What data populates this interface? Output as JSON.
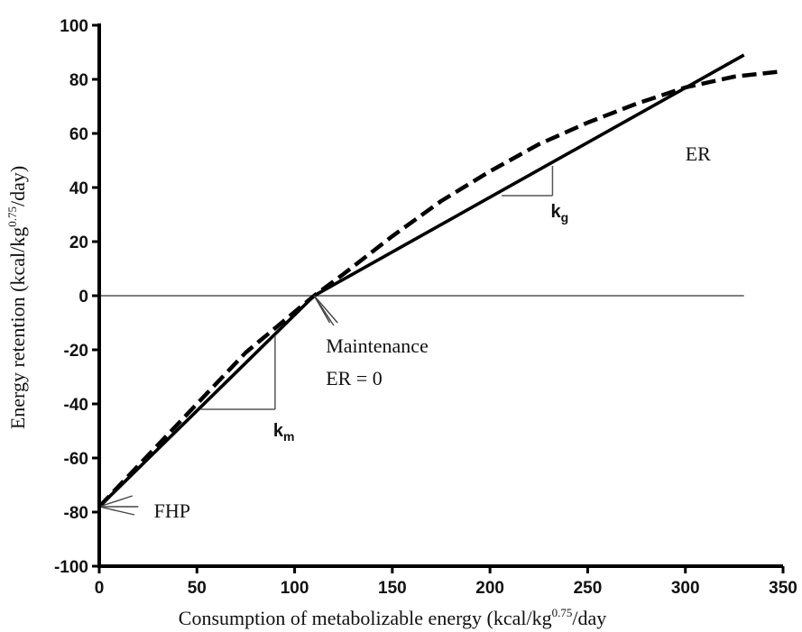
{
  "chart_data": {
    "type": "line",
    "xlabel_main": "Consumption of metabolizable energy (kcal/kg",
    "xlabel_sup": "0.75",
    "xlabel_end": "/day",
    "ylabel_main": "Energy retention (kcal/kg",
    "ylabel_sup": "0.75",
    "ylabel_end": "/day)",
    "xlim": [
      0,
      350
    ],
    "ylim": [
      -100,
      100
    ],
    "x_ticks": [
      0,
      50,
      100,
      150,
      200,
      250,
      300,
      350
    ],
    "y_ticks": [
      -100,
      -80,
      -60,
      -40,
      -20,
      0,
      20,
      40,
      60,
      80,
      100
    ],
    "x_tick_labels": [
      "0",
      "50",
      "100",
      "150",
      "200",
      "250",
      "300",
      "350"
    ],
    "y_tick_labels": [
      "-100",
      "-80",
      "-60",
      "-40",
      "-20",
      "0",
      "20",
      "40",
      "60",
      "80",
      "100"
    ],
    "zero_line": {
      "x": [
        0,
        330
      ],
      "y": 0
    },
    "series": [
      {
        "style": "solid",
        "x": [
          0,
          110,
          330
        ],
        "y": [
          -78,
          0,
          89
        ]
      },
      {
        "style": "dashed",
        "x": [
          0,
          25,
          50,
          75,
          100,
          110,
          125,
          150,
          175,
          200,
          225,
          250,
          275,
          300,
          325,
          350
        ],
        "y": [
          -78,
          -59,
          -40,
          -21,
          -6,
          0,
          8,
          22,
          35,
          46,
          56,
          64,
          71,
          77,
          81,
          83
        ]
      }
    ],
    "slope_triangles": [
      {
        "label": "k",
        "sub": "m",
        "corner": [
          90,
          -42
        ],
        "x_start": 52,
        "y_top": -15,
        "label_pos": [
          90,
          -52
        ]
      },
      {
        "label": "k",
        "sub": "g",
        "corner": [
          232,
          37
        ],
        "x_start": 206,
        "y_top": 48,
        "label_pos": [
          232,
          29
        ]
      }
    ],
    "annotations": [
      {
        "id": "er",
        "text": "ER",
        "pos": [
          300,
          50
        ]
      },
      {
        "id": "maintenance",
        "text": "Maintenance",
        "pos": [
          116,
          -21
        ]
      },
      {
        "id": "er-zero",
        "text": "ER = 0",
        "pos": [
          116,
          -33
        ]
      },
      {
        "id": "fhp",
        "text": "FHP",
        "pos": [
          28,
          -82
        ]
      }
    ],
    "arrows": [
      {
        "id": "maintenance-arrow",
        "tip": [
          110,
          0
        ],
        "fan_to": [
          [
            118,
            -10
          ],
          [
            120,
            -11
          ],
          [
            122,
            -10
          ]
        ]
      },
      {
        "id": "fhp-arrow",
        "tip": [
          0,
          -78
        ],
        "fan_to": [
          [
            17,
            -74
          ],
          [
            20,
            -78
          ],
          [
            18,
            -81
          ]
        ]
      }
    ]
  }
}
